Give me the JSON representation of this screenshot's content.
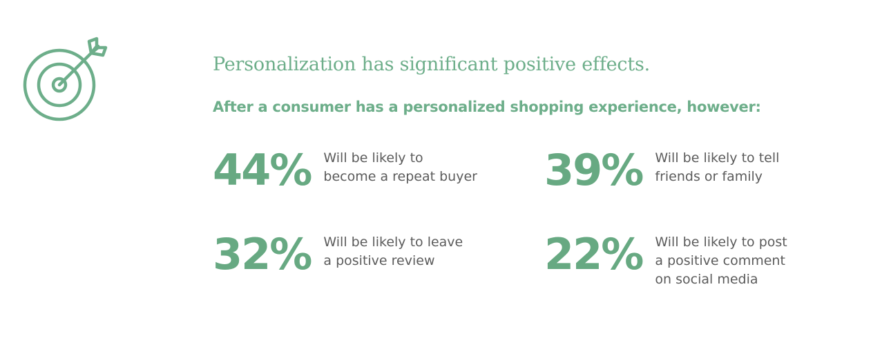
{
  "headline": "Personalization has significant positive effects.",
  "subhead": "After a consumer has a personalized shopping experience, however:",
  "icon": "target-with-arrow-icon",
  "colors": {
    "accent": "#67a982",
    "text": "#5b5b5b",
    "background": "#ffffff"
  },
  "stats": [
    {
      "value": "44%",
      "lines": [
        "Will be likely to",
        "become a repeat buyer"
      ]
    },
    {
      "value": "39%",
      "lines": [
        "Will be likely to tell",
        "friends or family"
      ]
    },
    {
      "value": "32%",
      "lines": [
        "Will be likely to leave",
        "a positive review"
      ]
    },
    {
      "value": "22%",
      "lines": [
        "Will be likely to post",
        "a positive comment",
        "on social media"
      ]
    }
  ]
}
